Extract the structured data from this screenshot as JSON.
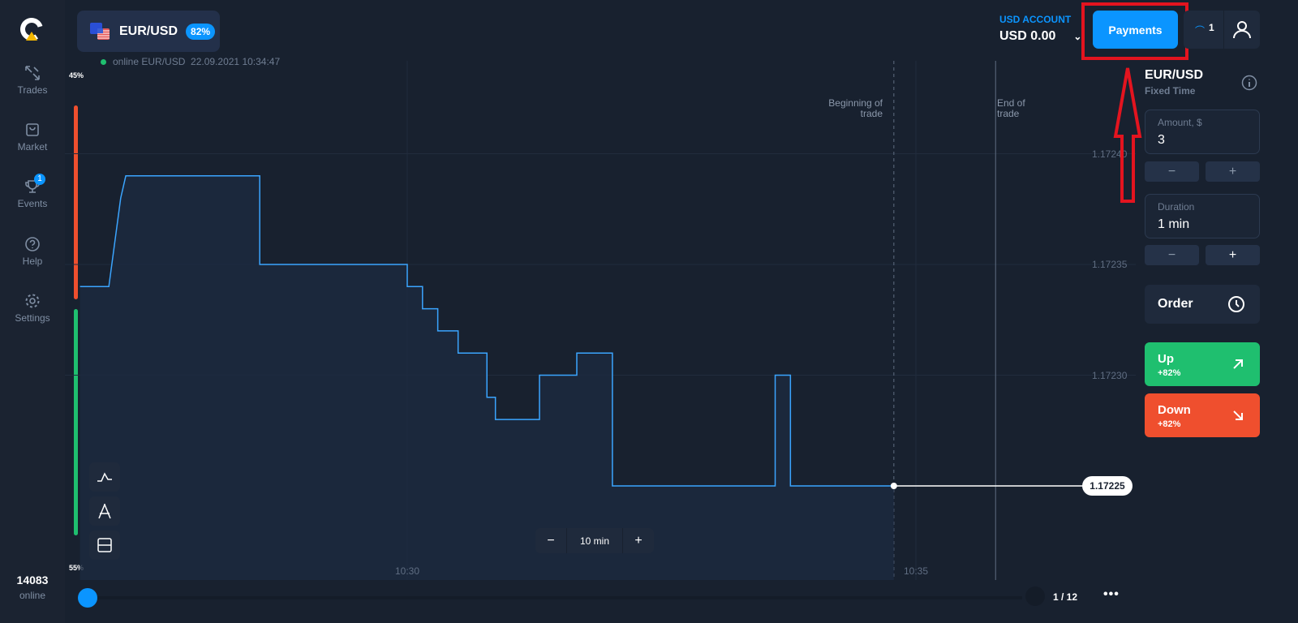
{
  "sidebar": {
    "items": [
      {
        "label": "Trades",
        "icon": "trades-arrows-icon"
      },
      {
        "label": "Market",
        "icon": "bag-icon"
      },
      {
        "label": "Events",
        "icon": "trophy-icon",
        "badge": "1"
      },
      {
        "label": "Help",
        "icon": "question-icon"
      },
      {
        "label": "Settings",
        "icon": "gear-icon"
      }
    ],
    "online_count": "14083",
    "online_label": "online"
  },
  "header": {
    "pair": "EUR/USD",
    "payout": "82%",
    "status": "online EUR/USD",
    "datetime": "22.09.2021 10:34:47",
    "account_label": "USD ACCOUNT",
    "balance": "USD 0.00",
    "payments": "Payments",
    "notif_count": "1"
  },
  "sentiment": {
    "top": "45%",
    "bottom": "55%",
    "sell_pct": 45,
    "buy_pct": 55,
    "sell_color": "#ef4f2e",
    "buy_color": "#1fbf6f"
  },
  "chart_data": {
    "type": "line",
    "x_ticks": [
      "10:30",
      "10:35"
    ],
    "y_ticks": [
      "1.17240",
      "1.17235",
      "1.17230"
    ],
    "current_price": "1.17225",
    "line_color": "#3ba5ff",
    "points": [
      [
        "10:26:47",
        1.17234
      ],
      [
        "10:27:04",
        1.17234
      ],
      [
        "10:27:11",
        1.17238
      ],
      [
        "10:27:14",
        1.17239
      ],
      [
        "10:28:33",
        1.17239
      ],
      [
        "10:28:33",
        1.17235
      ],
      [
        "10:30:00",
        1.17235
      ],
      [
        "10:30:00",
        1.17234
      ],
      [
        "10:30:09",
        1.17234
      ],
      [
        "10:30:09",
        1.17233
      ],
      [
        "10:30:18",
        1.17233
      ],
      [
        "10:30:18",
        1.17232
      ],
      [
        "10:30:30",
        1.17232
      ],
      [
        "10:30:30",
        1.17231
      ],
      [
        "10:30:47",
        1.17231
      ],
      [
        "10:30:47",
        1.17229
      ],
      [
        "10:30:52",
        1.17229
      ],
      [
        "10:30:52",
        1.17228
      ],
      [
        "10:31:18",
        1.17228
      ],
      [
        "10:31:18",
        1.1723
      ],
      [
        "10:31:40",
        1.1723
      ],
      [
        "10:31:40",
        1.17231
      ],
      [
        "10:32:01",
        1.17231
      ],
      [
        "10:32:01",
        1.17225
      ],
      [
        "10:33:37",
        1.17225
      ],
      [
        "10:33:37",
        1.1723
      ],
      [
        "10:33:46",
        1.1723
      ],
      [
        "10:33:46",
        1.17225
      ],
      [
        "10:34:47",
        1.17225
      ]
    ],
    "markers": {
      "beginning": "Beginning of trade",
      "end": "End of trade",
      "beginning_time": "10:34:47",
      "end_time": "10:35:47"
    }
  },
  "chart_controls": {
    "timeframe": "10 min",
    "minus": "−",
    "plus": "+",
    "page": "1 / 12"
  },
  "trade": {
    "pair": "EUR/USD",
    "type": "Fixed Time",
    "amount_label": "Amount, $",
    "amount": "3",
    "duration_label": "Duration",
    "duration": "1 min",
    "minus": "−",
    "plus": "+",
    "order": "Order",
    "up": "Up",
    "up_pct": "+82%",
    "down": "Down",
    "down_pct": "+82%",
    "up_color": "#1fbf6f",
    "down_color": "#ef4f2e"
  }
}
